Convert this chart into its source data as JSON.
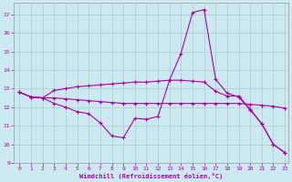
{
  "xlabel": "Windchill (Refroidissement éolien,°C)",
  "xlim": [
    -0.5,
    23.3
  ],
  "ylim": [
    9,
    17.6
  ],
  "yticks": [
    9,
    10,
    11,
    12,
    13,
    14,
    15,
    16,
    17
  ],
  "xticks": [
    0,
    1,
    2,
    3,
    4,
    5,
    6,
    7,
    8,
    9,
    10,
    11,
    12,
    13,
    14,
    15,
    16,
    17,
    18,
    19,
    20,
    21,
    22,
    23
  ],
  "bg_color": "#cce9f0",
  "line_color": "#aa00aa",
  "grid_color": "#b0d0d8",
  "line1_x": [
    0,
    1,
    2,
    3,
    4,
    5,
    6,
    7,
    8,
    9,
    10,
    11,
    12,
    13,
    14,
    15,
    16,
    17,
    18,
    19,
    20,
    21,
    22,
    23
  ],
  "line1_y": [
    12.8,
    12.55,
    12.5,
    12.2,
    12.0,
    11.75,
    11.65,
    11.15,
    10.45,
    10.35,
    11.4,
    11.35,
    11.5,
    13.45,
    14.9,
    17.1,
    17.25,
    13.5,
    12.75,
    12.55,
    11.85,
    11.1,
    10.0,
    9.55
  ],
  "line2_x": [
    0,
    1,
    2,
    3,
    4,
    5,
    6,
    7,
    8,
    9,
    10,
    11,
    12,
    13,
    14,
    15,
    16,
    17,
    18,
    19,
    20,
    21,
    22,
    23
  ],
  "line2_y": [
    12.8,
    12.55,
    12.5,
    12.5,
    12.45,
    12.4,
    12.35,
    12.3,
    12.25,
    12.2,
    12.2,
    12.2,
    12.2,
    12.2,
    12.2,
    12.2,
    12.2,
    12.2,
    12.2,
    12.2,
    12.15,
    12.1,
    12.05,
    11.95
  ],
  "line3_x": [
    0,
    1,
    2,
    3,
    4,
    5,
    6,
    7,
    8,
    9,
    10,
    11,
    12,
    13,
    14,
    15,
    16,
    17,
    18,
    19,
    20,
    21,
    22,
    23
  ],
  "line3_y": [
    12.8,
    12.55,
    12.5,
    12.9,
    13.0,
    13.1,
    13.15,
    13.2,
    13.25,
    13.3,
    13.35,
    13.35,
    13.4,
    13.45,
    13.45,
    13.4,
    13.35,
    12.85,
    12.6,
    12.6,
    11.9,
    11.1,
    10.0,
    9.55
  ]
}
